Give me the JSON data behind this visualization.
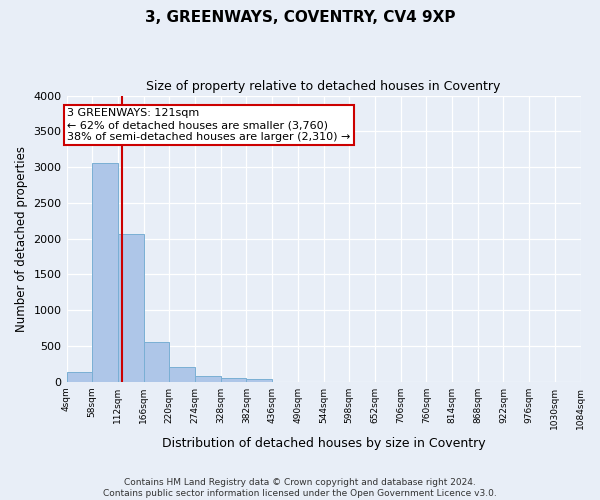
{
  "title": "3, GREENWAYS, COVENTRY, CV4 9XP",
  "subtitle": "Size of property relative to detached houses in Coventry",
  "xlabel": "Distribution of detached houses by size in Coventry",
  "ylabel": "Number of detached properties",
  "annotation_line1": "3 GREENWAYS: 121sqm",
  "annotation_line2": "← 62% of detached houses are smaller (3,760)",
  "annotation_line3": "38% of semi-detached houses are larger (2,310) →",
  "property_size": 121,
  "bin_edges": [
    4,
    58,
    112,
    166,
    220,
    274,
    328,
    382,
    436,
    490,
    544,
    598,
    652,
    706,
    760,
    814,
    868,
    922,
    976,
    1030,
    1084
  ],
  "bar_heights": [
    130,
    3060,
    2060,
    560,
    200,
    75,
    55,
    35,
    0,
    0,
    0,
    0,
    0,
    0,
    0,
    0,
    0,
    0,
    0,
    0
  ],
  "bar_color": "#aec6e8",
  "bar_edgecolor": "#7aafd4",
  "vline_x": 121,
  "vline_color": "#cc0000",
  "ylim": [
    0,
    4000
  ],
  "yticks": [
    0,
    500,
    1000,
    1500,
    2000,
    2500,
    3000,
    3500,
    4000
  ],
  "background_color": "#e8eef7",
  "axes_bg_color": "#e8eef7",
  "grid_color": "#d0d8e8",
  "footer_line1": "Contains HM Land Registry data © Crown copyright and database right 2024.",
  "footer_line2": "Contains public sector information licensed under the Open Government Licence v3.0."
}
